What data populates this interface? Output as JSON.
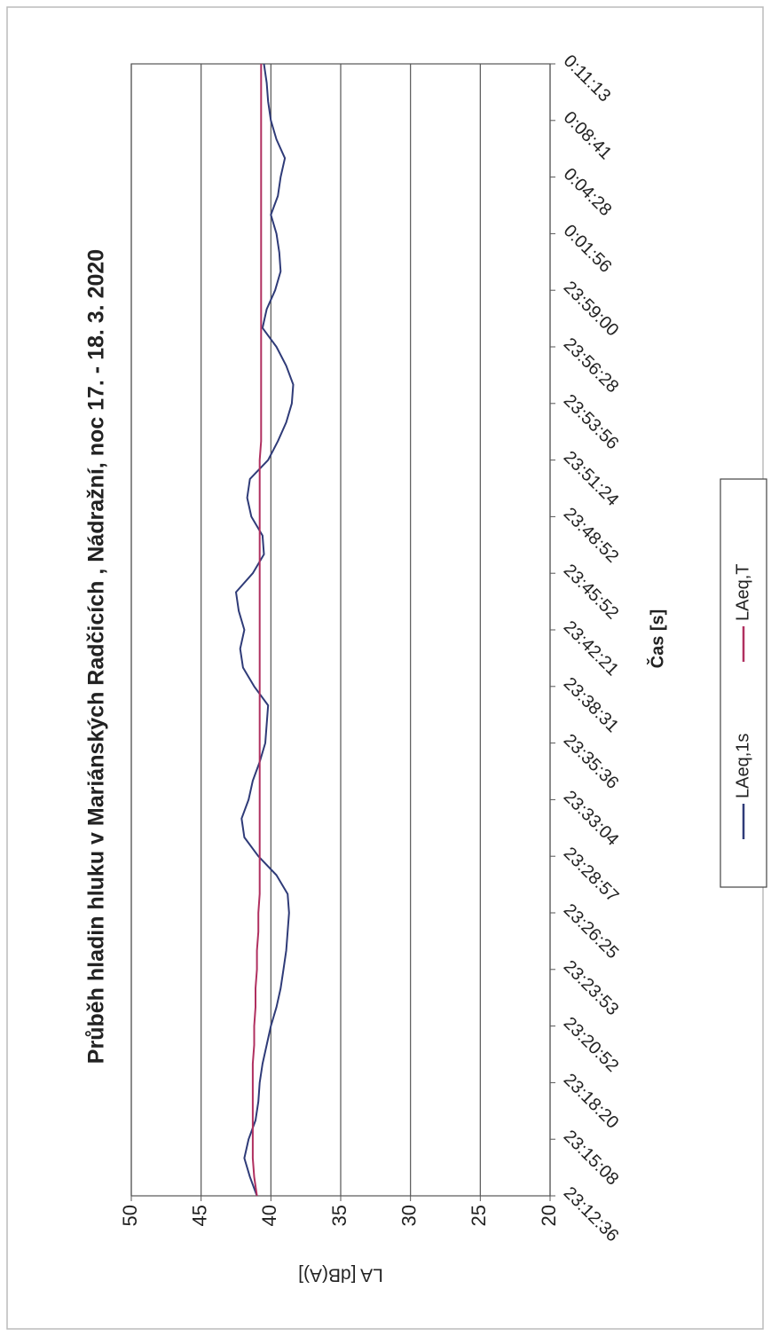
{
  "chart_data": {
    "type": "line",
    "title": "Průběh hladin hluku v Mariánských Radčicích , Nádražní, noc 17. - 18. 3. 2020",
    "x_label": "Čas [s]",
    "y_label": "LA [dB(A)]",
    "categories": [
      "23:12:36",
      null,
      null,
      "23:15:08",
      null,
      null,
      "23:18:20",
      null,
      null,
      "23:20:52",
      null,
      null,
      "23:23:53",
      null,
      null,
      "23:26:25",
      null,
      null,
      "23:28:57",
      null,
      null,
      "23:33:04",
      null,
      null,
      "23:35:36",
      null,
      null,
      "23:38:31",
      null,
      null,
      "23:42:21",
      null,
      null,
      "23:45:52",
      null,
      null,
      "23:48:52",
      null,
      null,
      "23:51:24",
      null,
      null,
      "23:53:56",
      null,
      null,
      "23:56:28",
      null,
      null,
      "23:59:00",
      null,
      null,
      "0:01:56",
      null,
      null,
      "0:04:28",
      null,
      null,
      "0:08:41",
      null,
      null,
      "0:11:13"
    ],
    "series": [
      {
        "name": "LAeq,1s",
        "color": "#2f3b78",
        "values": [
          41.0,
          41.5,
          41.9,
          41.6,
          41.1,
          40.9,
          40.8,
          40.6,
          40.3,
          40.0,
          39.6,
          39.3,
          39.1,
          38.9,
          38.8,
          38.7,
          38.8,
          39.6,
          40.9,
          41.9,
          42.1,
          41.6,
          41.3,
          40.8,
          40.4,
          40.3,
          40.2,
          41.2,
          42.0,
          42.2,
          41.9,
          42.3,
          42.5,
          41.3,
          40.5,
          40.6,
          41.4,
          41.7,
          41.5,
          40.2,
          39.5,
          38.9,
          38.5,
          38.4,
          38.9,
          39.6,
          40.6,
          40.3,
          39.7,
          39.3,
          39.4,
          39.6,
          40.0,
          39.5,
          39.3,
          39.0,
          39.6,
          40.0,
          40.2,
          40.3,
          40.5
        ]
      },
      {
        "name": "LAeq,T",
        "color": "#b03060",
        "values": [
          41.0,
          41.2,
          41.3,
          41.3,
          41.3,
          41.3,
          41.3,
          41.3,
          41.2,
          41.2,
          41.1,
          41.1,
          41.0,
          41.0,
          40.9,
          40.9,
          40.8,
          40.8,
          40.8,
          40.8,
          40.8,
          40.8,
          40.8,
          40.8,
          40.8,
          40.8,
          40.8,
          40.8,
          40.8,
          40.8,
          40.8,
          40.8,
          40.8,
          40.8,
          40.8,
          40.8,
          40.8,
          40.8,
          40.8,
          40.8,
          40.7,
          40.7,
          40.7,
          40.7,
          40.7,
          40.7,
          40.7,
          40.7,
          40.7,
          40.7,
          40.7,
          40.7,
          40.7,
          40.7,
          40.7,
          40.7,
          40.7,
          40.7,
          40.7,
          40.7,
          40.7
        ]
      }
    ],
    "ylim": [
      20,
      50
    ],
    "yticks": [
      20,
      25,
      30,
      35,
      40,
      45,
      50
    ],
    "grid": true
  }
}
